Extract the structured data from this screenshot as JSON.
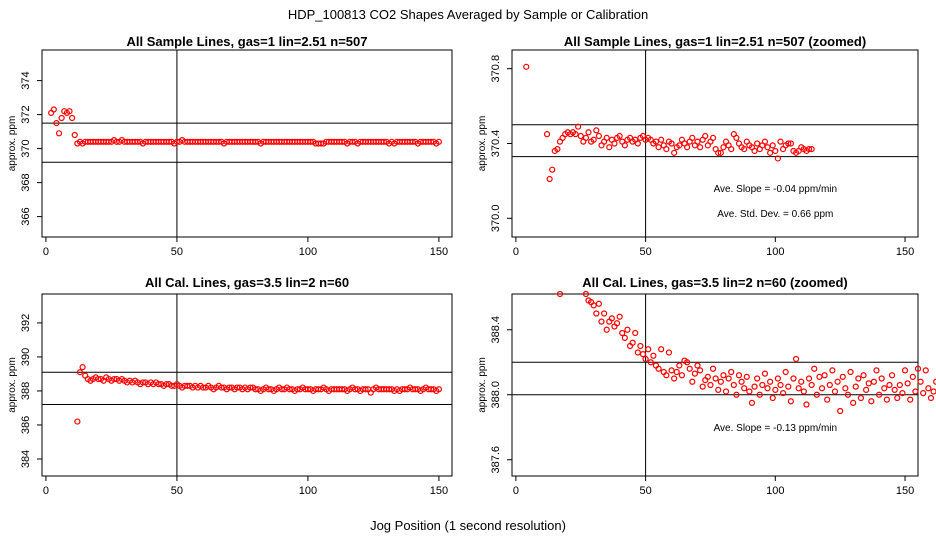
{
  "figure": {
    "title": "HDP_100813  CO2 Shapes Averaged by Sample or Calibration",
    "xlabel": "Jog Position (1 second resolution)"
  },
  "colors": {
    "points": "#ff0000",
    "frame": "#000000"
  },
  "chart_data": [
    {
      "type": "scatter",
      "title": "All Sample Lines, gas=1 lin=2.51 n=507",
      "xlabel": "",
      "ylabel": "approx. ppm",
      "xlim": [
        -1.5,
        155
      ],
      "ylim": [
        364.8,
        375.8
      ],
      "xticks": [
        0,
        50,
        100,
        150
      ],
      "yticks": [
        366,
        368,
        370,
        372,
        374
      ],
      "vline": 50,
      "hlines": [
        369.2,
        371.5
      ],
      "series": [
        {
          "x_start": 2,
          "x_step": 1,
          "values": [
            372.1,
            372.3,
            371.5,
            370.9,
            371.8,
            372.2,
            372.1,
            372.2,
            371.8,
            370.8,
            370.3,
            370.4,
            370.3,
            370.4,
            370.4,
            370.4,
            370.4,
            370.4,
            370.4,
            370.4,
            370.4,
            370.4,
            370.4,
            370.4,
            370.5,
            370.4,
            370.4,
            370.5,
            370.4,
            370.4,
            370.4,
            370.4,
            370.4,
            370.4,
            370.4,
            370.3,
            370.4,
            370.4,
            370.4,
            370.4,
            370.4,
            370.4,
            370.4,
            370.4,
            370.4,
            370.4,
            370.4,
            370.3,
            370.4,
            370.4,
            370.5,
            370.4,
            370.4,
            370.4,
            370.4,
            370.4,
            370.4,
            370.4,
            370.4,
            370.4,
            370.4,
            370.4,
            370.4,
            370.4,
            370.4,
            370.4,
            370.3,
            370.4,
            370.4,
            370.4,
            370.4,
            370.4,
            370.4,
            370.4,
            370.4,
            370.4,
            370.4,
            370.4,
            370.4,
            370.4,
            370.3,
            370.4,
            370.4,
            370.4,
            370.4,
            370.4,
            370.4,
            370.4,
            370.4,
            370.4,
            370.4,
            370.4,
            370.4,
            370.4,
            370.4,
            370.4,
            370.4,
            370.4,
            370.4,
            370.4,
            370.4,
            370.3,
            370.3,
            370.3,
            370.3,
            370.4,
            370.4,
            370.4,
            370.4,
            370.4,
            370.4,
            370.4,
            370.4,
            370.3,
            370.4,
            370.4,
            370.4,
            370.3,
            370.4,
            370.4,
            370.4,
            370.4,
            370.4,
            370.4,
            370.4,
            370.4,
            370.4,
            370.4,
            370.4,
            370.3,
            370.4,
            370.3,
            370.4,
            370.4,
            370.4,
            370.4,
            370.4,
            370.4,
            370.4,
            370.4,
            370.3,
            370.4,
            370.4,
            370.4,
            370.4,
            370.4,
            370.4,
            370.3,
            370.4
          ]
        }
      ]
    },
    {
      "type": "scatter",
      "title": "All Sample Lines, gas=1 lin=2.51 n=507 (zoomed)",
      "xlabel": "",
      "ylabel": "approx. ppm",
      "xlim": [
        -1.5,
        155
      ],
      "ylim": [
        369.9,
        370.9
      ],
      "xticks": [
        0,
        50,
        100,
        150
      ],
      "yticks": [
        370.0,
        370.4,
        370.8
      ],
      "ytick_labels": [
        "370.0",
        "370.4",
        "370.8"
      ],
      "vline": 50,
      "hlines": [
        370.33,
        370.5
      ],
      "annotations": [
        "Ave. Slope =  -0.04  ppm/min",
        "Ave. Std. Dev. =  0.66  ppm"
      ],
      "series": [
        {
          "x_start": 4,
          "x_step": 1,
          "values": [
            370.81,
            null,
            null,
            null,
            null,
            null,
            null,
            null,
            370.45,
            370.21,
            370.26,
            370.36,
            370.37,
            370.41,
            370.43,
            370.45,
            370.46,
            370.45,
            370.46,
            370.45,
            370.49,
            370.44,
            370.41,
            370.43,
            370.46,
            370.41,
            370.42,
            370.47,
            370.44,
            370.39,
            370.41,
            370.43,
            370.38,
            370.42,
            370.4,
            370.43,
            370.44,
            370.41,
            370.39,
            370.42,
            370.43,
            370.41,
            370.42,
            370.4,
            370.43,
            370.44,
            370.42,
            370.43,
            370.42,
            370.4,
            370.41,
            370.38,
            370.42,
            370.39,
            370.37,
            370.41,
            370.4,
            370.35,
            370.38,
            370.39,
            370.42,
            370.4,
            370.38,
            370.41,
            370.43,
            370.39,
            370.41,
            370.38,
            370.42,
            370.44,
            370.39,
            370.41,
            370.43,
            370.37,
            370.35,
            370.35,
            370.38,
            370.41,
            370.39,
            370.37,
            370.45,
            370.43,
            370.4,
            370.38,
            370.37,
            370.41,
            370.39,
            370.38,
            370.36,
            370.4,
            370.37,
            370.39,
            370.41,
            370.38,
            370.35,
            370.39,
            370.36,
            370.32,
            370.41,
            370.37,
            370.39,
            370.4,
            370.4,
            370.36,
            370.35,
            370.36,
            370.38,
            370.37,
            370.36,
            370.37,
            370.37
          ]
        }
      ]
    },
    {
      "type": "scatter",
      "title": "All Cal. Lines, gas=3.5 lin=2 n=60",
      "xlabel": "",
      "ylabel": "approx. ppm",
      "xlim": [
        -1.5,
        155
      ],
      "ylim": [
        383,
        393.7
      ],
      "xticks": [
        0,
        50,
        100,
        150
      ],
      "yticks": [
        384,
        386,
        388,
        390,
        392
      ],
      "vline": 50,
      "hlines": [
        387.2,
        389.1
      ],
      "series": [
        {
          "x_start": 12,
          "x_step": 1,
          "values": [
            386.2,
            389.1,
            389.4,
            388.9,
            388.7,
            388.6,
            388.7,
            388.8,
            388.7,
            388.7,
            388.6,
            388.8,
            388.7,
            388.6,
            388.7,
            388.7,
            388.6,
            388.7,
            388.6,
            388.5,
            388.6,
            388.5,
            388.6,
            388.5,
            388.4,
            388.5,
            388.5,
            388.4,
            388.5,
            388.4,
            388.5,
            388.4,
            388.4,
            388.3,
            388.4,
            388.4,
            388.3,
            388.3,
            388.4,
            388.3,
            388.2,
            388.3,
            388.3,
            388.3,
            388.2,
            388.3,
            388.2,
            388.3,
            388.2,
            388.2,
            388.3,
            388.2,
            388.1,
            388.2,
            388.3,
            388.2,
            388.2,
            388.1,
            388.2,
            388.2,
            388.1,
            388.2,
            388.2,
            388.1,
            388.2,
            388.1,
            388.2,
            388.2,
            388.1,
            388.1,
            388.0,
            388.1,
            388.2,
            388.1,
            388.1,
            388.0,
            388.1,
            388.2,
            388.1,
            388.1,
            388.2,
            388.1,
            388.1,
            388.0,
            388.1,
            388.1,
            388.2,
            388.1,
            388.1,
            388.1,
            388.0,
            388.1,
            388.1,
            388.1,
            388.2,
            388.1,
            388.0,
            388.1,
            388.1,
            388.1,
            388.1,
            388.1,
            388.1,
            388.0,
            388.1,
            388.2,
            388.1,
            388.1,
            388.0,
            388.1,
            388.1,
            388.1,
            387.9,
            388.1,
            388.2,
            388.1,
            388.1,
            388.1,
            388.1,
            388.1,
            388.1,
            388.0,
            388.1,
            388.0,
            388.1,
            388.1,
            388.1,
            388.2,
            388.1,
            388.1,
            388.1,
            388.0,
            388.1,
            388.2,
            388.1,
            388.1,
            388.1,
            388.0,
            388.1
          ]
        }
      ]
    },
    {
      "type": "scatter",
      "title": "All Cal. Lines, gas=3.5 lin=2 n=60 (zoomed)",
      "xlabel": "",
      "ylabel": "approx. ppm",
      "xlim": [
        -1.5,
        155
      ],
      "ylim": [
        387.5,
        388.62
      ],
      "xticks": [
        0,
        50,
        100,
        150
      ],
      "yticks": [
        387.6,
        388.0,
        388.4
      ],
      "ytick_labels": [
        "387.6",
        "388.0",
        "388.4"
      ],
      "vline": 50,
      "hlines": [
        388.0,
        388.2
      ],
      "annotations": [
        "Ave. Slope =  -0.13  ppm/min"
      ],
      "series": [
        {
          "x_start": 17,
          "x_step": 1,
          "values": [
            388.62,
            null,
            null,
            null,
            null,
            null,
            null,
            null,
            null,
            null,
            388.62,
            388.58,
            388.57,
            388.55,
            388.5,
            388.56,
            388.45,
            388.5,
            388.4,
            388.45,
            388.47,
            388.42,
            388.44,
            388.48,
            388.38,
            388.35,
            388.4,
            388.3,
            388.32,
            388.38,
            388.26,
            388.3,
            388.25,
            388.22,
            388.28,
            388.2,
            388.24,
            388.18,
            388.16,
            388.28,
            388.14,
            388.12,
            388.26,
            388.15,
            388.1,
            388.14,
            388.18,
            388.12,
            388.21,
            388.2,
            388.16,
            388.08,
            388.13,
            388.18,
            388.15,
            388.05,
            388.09,
            388.11,
            388.06,
            388.16,
            388.1,
            388.03,
            388.08,
            388.12,
            388.02,
            388.1,
            388.14,
            388.06,
            388.0,
            388.12,
            388.08,
            388.04,
            388.11,
            388.02,
            387.95,
            388.05,
            388.1,
            388.0,
            388.06,
            388.13,
            388.04,
            388.08,
            387.98,
            388.03,
            388.1,
            388.06,
            388.01,
            388.14,
            388.05,
            387.96,
            388.1,
            388.22,
            388.04,
            388.08,
            388.02,
            387.94,
            388.1,
            388.06,
            388.16,
            388.0,
            388.11,
            388.04,
            388.12,
            387.97,
            388.06,
            388.15,
            388.02,
            388.08,
            387.9,
            388.11,
            388.04,
            388.0,
            388.14,
            387.95,
            388.05,
            388.1,
            387.98,
            388.12,
            388.03,
            388.07,
            387.96,
            388.08,
            388.15,
            388.0,
            388.1,
            388.04,
            387.97,
            388.06,
            388.12,
            388.03,
            387.98,
            388.06,
            388.01,
            388.15,
            388.07,
            387.97,
            388.11,
            388.02,
            388.16,
            388.08,
            388.01,
            388.15,
            388.04,
            387.98,
            388.02,
            388.08
          ]
        }
      ]
    }
  ]
}
